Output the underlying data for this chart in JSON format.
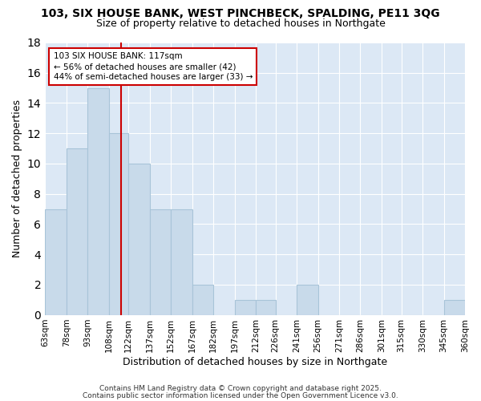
{
  "title_line1": "103, SIX HOUSE BANK, WEST PINCHBECK, SPALDING, PE11 3QG",
  "title_line2": "Size of property relative to detached houses in Northgate",
  "xlabel": "Distribution of detached houses by size in Northgate",
  "ylabel": "Number of detached properties",
  "bin_edges": [
    63,
    78,
    93,
    108,
    122,
    137,
    152,
    167,
    182,
    197,
    212,
    226,
    241,
    256,
    271,
    286,
    301,
    315,
    330,
    345,
    360
  ],
  "bin_labels": [
    "63sqm",
    "78sqm",
    "93sqm",
    "108sqm",
    "122sqm",
    "137sqm",
    "152sqm",
    "167sqm",
    "182sqm",
    "197sqm",
    "212sqm",
    "226sqm",
    "241sqm",
    "256sqm",
    "271sqm",
    "286sqm",
    "301sqm",
    "315sqm",
    "330sqm",
    "345sqm",
    "360sqm"
  ],
  "counts": [
    7,
    11,
    15,
    12,
    10,
    7,
    7,
    2,
    0,
    1,
    1,
    0,
    2,
    0,
    0,
    0,
    0,
    0,
    0,
    1
  ],
  "bar_color": "#c8daea",
  "bar_edge_color": "#a8c4d8",
  "red_line_x": 117,
  "ylim": [
    0,
    18
  ],
  "yticks": [
    0,
    2,
    4,
    6,
    8,
    10,
    12,
    14,
    16,
    18
  ],
  "annotation_text": "103 SIX HOUSE BANK: 117sqm\n← 56% of detached houses are smaller (42)\n44% of semi-detached houses are larger (33) →",
  "annotation_box_facecolor": "#ffffff",
  "annotation_box_edgecolor": "#cc0000",
  "figure_facecolor": "#ffffff",
  "axes_facecolor": "#dce8f5",
  "grid_color": "#ffffff",
  "footnote1": "Contains HM Land Registry data © Crown copyright and database right 2025.",
  "footnote2": "Contains public sector information licensed under the Open Government Licence v3.0."
}
